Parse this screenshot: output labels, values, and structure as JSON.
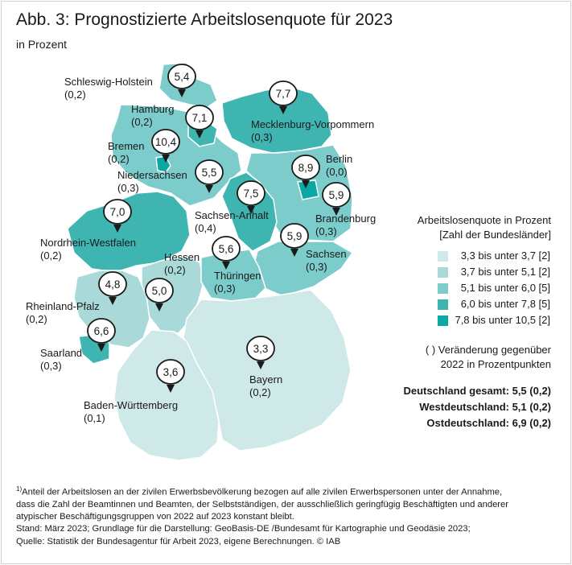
{
  "figure": {
    "title": "Abb. 3: Prognostizierte Arbeitslosenquote für 2023",
    "subtitle": "in Prozent"
  },
  "legend": {
    "title_line1": "Arbeitslosenquote in Prozent",
    "title_line2": "[Zahl der Bundesländer]",
    "classes": [
      {
        "label": "3,3 bis unter 3,7 [2]",
        "color": "#cfe8e8"
      },
      {
        "label": "3,7 bis unter 5,1 [2]",
        "color": "#a9dad9"
      },
      {
        "label": "5,1 bis unter 6,0 [5]",
        "color": "#7ccccc"
      },
      {
        "label": "6,0 bis unter 7,8 [5]",
        "color": "#3fb5b1"
      },
      {
        "label": "7,8 bis unter 10,5 [2]",
        "color": "#0aa8a3"
      }
    ]
  },
  "change_note": {
    "line1": "( ) Veränderung gegenüber",
    "line2": "2022 in Prozentpunkten"
  },
  "totals": {
    "germany": "Deutschland gesamt: 5,5 (0,2)",
    "west": "Westdeutschland: 5,1 (0,2)",
    "east": "Ostdeutschland: 6,9 (0,2)"
  },
  "states": [
    {
      "id": "sh",
      "name": "Schleswig-Holstein",
      "rate": "5,4",
      "change": "(0,2)",
      "color": "#7ccccc"
    },
    {
      "id": "hh",
      "name": "Hamburg",
      "rate": "7,1",
      "change": "(0,2)",
      "color": "#3fb5b1"
    },
    {
      "id": "mv",
      "name": "Mecklenburg-Vorpommern",
      "rate": "7,7",
      "change": "(0,3)",
      "color": "#3fb5b1"
    },
    {
      "id": "hb",
      "name": "Bremen",
      "rate": "10,4",
      "change": "(0,2)",
      "color": "#0aa8a3"
    },
    {
      "id": "be",
      "name": "Berlin",
      "rate": "8,9",
      "change": "(0,0)",
      "color": "#0aa8a3"
    },
    {
      "id": "ni",
      "name": "Niedersachsen",
      "rate": "5,5",
      "change": "(0,3)",
      "color": "#7ccccc"
    },
    {
      "id": "bb",
      "name": "Brandenburg",
      "rate": "5,9",
      "change": "(0,3)",
      "color": "#7ccccc"
    },
    {
      "id": "st",
      "name": "Sachsen-Anhalt",
      "rate": "7,5",
      "change": "(0,4)",
      "color": "#3fb5b1"
    },
    {
      "id": "nw",
      "name": "Nordrhein-Westfalen",
      "rate": "7,0",
      "change": "(0,2)",
      "color": "#3fb5b1"
    },
    {
      "id": "sn",
      "name": "Sachsen",
      "rate": "5,9",
      "change": "(0,3)",
      "color": "#7ccccc"
    },
    {
      "id": "he",
      "name": "Hessen",
      "rate": "5,0",
      "change": "(0,2)",
      "color": "#a9dad9"
    },
    {
      "id": "th",
      "name": "Thüringen",
      "rate": "5,6",
      "change": "(0,3)",
      "color": "#7ccccc"
    },
    {
      "id": "rp",
      "name": "Rheinland-Pfalz",
      "rate": "4,8",
      "change": "(0,2)",
      "color": "#a9dad9"
    },
    {
      "id": "sl",
      "name": "Saarland",
      "rate": "6,6",
      "change": "(0,3)",
      "color": "#3fb5b1"
    },
    {
      "id": "by",
      "name": "Bayern",
      "rate": "3,3",
      "change": "(0,2)",
      "color": "#cfe8e8"
    },
    {
      "id": "bw",
      "name": "Baden-Württemberg",
      "rate": "3,6",
      "change": "(0,1)",
      "color": "#cfe8e8"
    }
  ],
  "footnotes": {
    "marker": "1)",
    "line1": "Anteil der Arbeitslosen an der zivilen Erwerbsbevölkerung bezogen auf alle zivilen Erwerbspersonen unter der Annahme,",
    "line2": "dass die Zahl der Beamtinnen und Beamten, der Selbstständigen, der ausschließlich geringfügig Beschäftigten und anderer",
    "line3": "atypischer Beschäftigungsgruppen von 2022 auf 2023 konstant bleibt.",
    "line4": "Stand: März 2023; Grundlage für die Darstellung: GeoBasis-DE /Bundesamt für Kartographie und Geodäsie 2023;",
    "line5": "Quelle: Statistik der Bundesagentur für Arbeit 2023, eigene Berechnungen. © IAB"
  }
}
